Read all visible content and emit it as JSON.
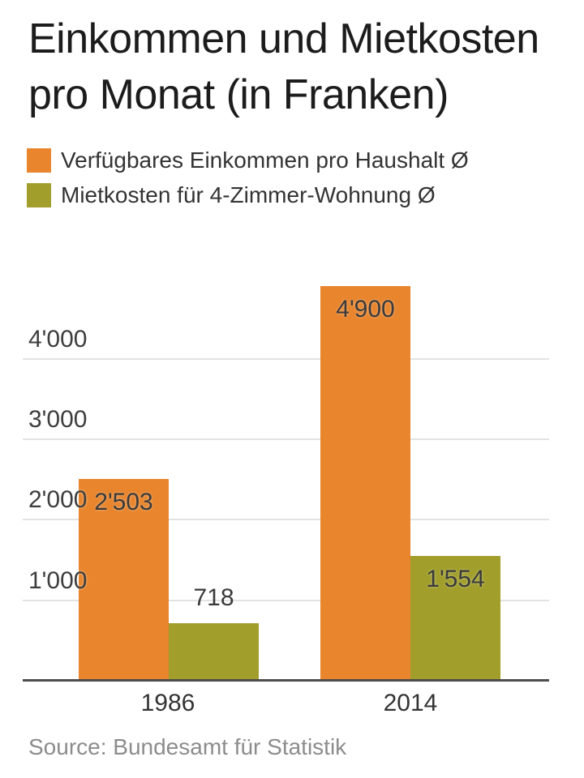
{
  "page": {
    "title": "Einkommen und Mietkosten pro Monat (in Franken)",
    "source": "Source: Bundesamt für Statistik"
  },
  "legend": {
    "items": [
      {
        "label": "Verfügbares Einkommen pro Haushalt Ø",
        "color": "#E8852D"
      },
      {
        "label": "Mietkosten für 4-Zimmer-Wohnung Ø",
        "color": "#A19E2B"
      }
    ]
  },
  "chart_data": {
    "type": "bar",
    "title": "Einkommen und Mietkosten pro Monat (in Franken)",
    "categories": [
      "1986",
      "2014"
    ],
    "series": [
      {
        "name": "Verfügbares Einkommen pro Haushalt Ø",
        "color": "#E8852D",
        "values": [
          2503,
          4900
        ],
        "value_labels": [
          "2'503",
          "4'900"
        ]
      },
      {
        "name": "Mietkosten für 4-Zimmer-Wohnung Ø",
        "color": "#A19E2B",
        "values": [
          718,
          1554
        ],
        "value_labels": [
          "718",
          "1'554"
        ]
      }
    ],
    "y_ticks": [
      {
        "value": 1000,
        "label": "1'000"
      },
      {
        "value": 2000,
        "label": "2'000"
      },
      {
        "value": 3000,
        "label": "3'000"
      },
      {
        "value": 4000,
        "label": "4'000"
      }
    ],
    "ylim": [
      0,
      4950
    ],
    "grid": true,
    "legend_position": "top",
    "xlabel": "",
    "ylabel": "",
    "source": "Source: Bundesamt für Statistik"
  }
}
